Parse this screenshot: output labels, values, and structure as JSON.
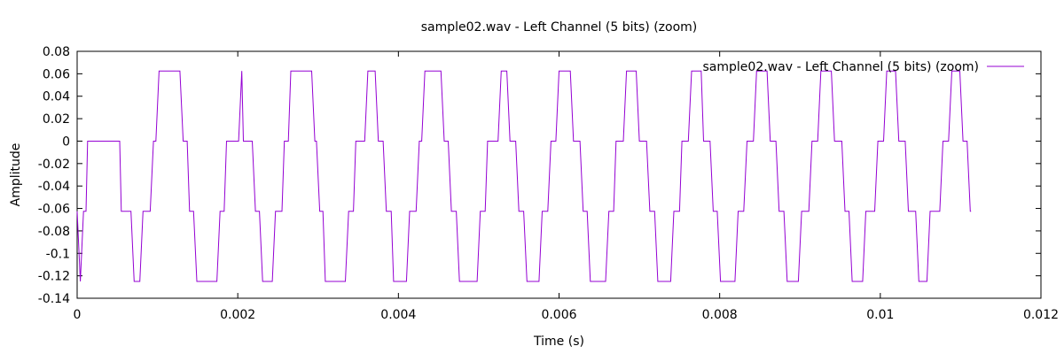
{
  "chart_data": {
    "type": "line",
    "title": "sample02.wav - Left Channel (5 bits) (zoom)",
    "xlabel": "Time (s)",
    "ylabel": "Amplitude",
    "xlim": [
      0,
      0.012
    ],
    "ylim": [
      -0.14,
      0.08
    ],
    "x_ticks": [
      {
        "value": 0,
        "label": "0"
      },
      {
        "value": 0.002,
        "label": "0.002"
      },
      {
        "value": 0.004,
        "label": "0.004"
      },
      {
        "value": 0.006,
        "label": "0.006"
      },
      {
        "value": 0.008,
        "label": "0.008"
      },
      {
        "value": 0.01,
        "label": "0.01"
      },
      {
        "value": 0.012,
        "label": "0.012"
      }
    ],
    "y_ticks": [
      {
        "value": 0.08,
        "label": "0.08"
      },
      {
        "value": 0.06,
        "label": "0.06"
      },
      {
        "value": 0.04,
        "label": "0.04"
      },
      {
        "value": 0.02,
        "label": "0.02"
      },
      {
        "value": 0,
        "label": "0"
      },
      {
        "value": -0.02,
        "label": "-0.02"
      },
      {
        "value": -0.04,
        "label": "-0.04"
      },
      {
        "value": -0.06,
        "label": "-0.06"
      },
      {
        "value": -0.08,
        "label": "-0.08"
      },
      {
        "value": -0.1,
        "label": "-0.1"
      },
      {
        "value": -0.12,
        "label": "-0.12"
      },
      {
        "value": -0.14,
        "label": "-0.14"
      }
    ],
    "grid": false,
    "legend_position": "top-right",
    "series": [
      {
        "name": "sample02.wav - Left Channel (5 bits) (zoom)",
        "color": "#9400d3",
        "points": [
          [
            0.0,
            -0.0625
          ],
          [
            4e-05,
            -0.125
          ],
          [
            8e-05,
            -0.0625
          ],
          [
            0.00011,
            -0.0625
          ],
          [
            0.00013,
            0.0
          ],
          [
            0.00053,
            0.0
          ],
          [
            0.00055,
            -0.0625
          ],
          [
            0.00067,
            -0.0625
          ],
          [
            0.00071,
            -0.125
          ],
          [
            0.00078,
            -0.125
          ],
          [
            0.00082,
            -0.0625
          ],
          [
            0.00091,
            -0.0625
          ],
          [
            0.00095,
            0.0
          ],
          [
            0.00098,
            0.0
          ],
          [
            0.00102,
            0.0625
          ],
          [
            0.00128,
            0.0625
          ],
          [
            0.00132,
            0.0
          ],
          [
            0.00137,
            0.0
          ],
          [
            0.0014,
            -0.0625
          ],
          [
            0.00145,
            -0.0625
          ],
          [
            0.00149,
            -0.125
          ],
          [
            0.00174,
            -0.125
          ],
          [
            0.00178,
            -0.0625
          ],
          [
            0.00183,
            -0.0625
          ],
          [
            0.00186,
            0.0
          ],
          [
            0.00201,
            0.0
          ],
          [
            0.00205,
            0.0625
          ],
          [
            0.00207,
            0.0
          ],
          [
            0.00218,
            0.0
          ],
          [
            0.00222,
            -0.0625
          ],
          [
            0.00227,
            -0.0625
          ],
          [
            0.00231,
            -0.125
          ],
          [
            0.00243,
            -0.125
          ],
          [
            0.00247,
            -0.0625
          ],
          [
            0.00255,
            -0.0625
          ],
          [
            0.00258,
            0.0
          ],
          [
            0.00263,
            0.0
          ],
          [
            0.00266,
            0.0625
          ],
          [
            0.00292,
            0.0625
          ],
          [
            0.00296,
            0.0
          ],
          [
            0.00298,
            0.0
          ],
          [
            0.00302,
            -0.0625
          ],
          [
            0.00306,
            -0.0625
          ],
          [
            0.00309,
            -0.125
          ],
          [
            0.00334,
            -0.125
          ],
          [
            0.00338,
            -0.0625
          ],
          [
            0.00344,
            -0.0625
          ],
          [
            0.00347,
            0.0
          ],
          [
            0.00358,
            0.0
          ],
          [
            0.00362,
            0.0625
          ],
          [
            0.00371,
            0.0625
          ],
          [
            0.00375,
            0.0
          ],
          [
            0.00381,
            0.0
          ],
          [
            0.00385,
            -0.0625
          ],
          [
            0.00391,
            -0.0625
          ],
          [
            0.00394,
            -0.125
          ],
          [
            0.0041,
            -0.125
          ],
          [
            0.00414,
            -0.0625
          ],
          [
            0.00422,
            -0.0625
          ],
          [
            0.00426,
            0.0
          ],
          [
            0.00429,
            0.0
          ],
          [
            0.00433,
            0.0625
          ],
          [
            0.00453,
            0.0625
          ],
          [
            0.00457,
            0.0
          ],
          [
            0.00462,
            0.0
          ],
          [
            0.00466,
            -0.0625
          ],
          [
            0.00472,
            -0.0625
          ],
          [
            0.00476,
            -0.125
          ],
          [
            0.00498,
            -0.125
          ],
          [
            0.00502,
            -0.0625
          ],
          [
            0.00508,
            -0.0625
          ],
          [
            0.00511,
            0.0
          ],
          [
            0.00524,
            0.0
          ],
          [
            0.00528,
            0.0625
          ],
          [
            0.00535,
            0.0625
          ],
          [
            0.00539,
            0.0
          ],
          [
            0.00546,
            0.0
          ],
          [
            0.0055,
            -0.0625
          ],
          [
            0.00556,
            -0.0625
          ],
          [
            0.0056,
            -0.125
          ],
          [
            0.00575,
            -0.125
          ],
          [
            0.00579,
            -0.0625
          ],
          [
            0.00586,
            -0.0625
          ],
          [
            0.0059,
            0.0
          ],
          [
            0.00596,
            0.0
          ],
          [
            0.006,
            0.0625
          ],
          [
            0.00614,
            0.0625
          ],
          [
            0.00618,
            0.0
          ],
          [
            0.00626,
            0.0
          ],
          [
            0.0063,
            -0.0625
          ],
          [
            0.00635,
            -0.0625
          ],
          [
            0.00639,
            -0.125
          ],
          [
            0.00658,
            -0.125
          ],
          [
            0.00662,
            -0.0625
          ],
          [
            0.00668,
            -0.0625
          ],
          [
            0.00671,
            0.0
          ],
          [
            0.0068,
            0.0
          ],
          [
            0.00684,
            0.0625
          ],
          [
            0.00696,
            0.0625
          ],
          [
            0.007,
            0.0
          ],
          [
            0.00709,
            0.0
          ],
          [
            0.00713,
            -0.0625
          ],
          [
            0.00719,
            -0.0625
          ],
          [
            0.00723,
            -0.125
          ],
          [
            0.00739,
            -0.125
          ],
          [
            0.00743,
            -0.0625
          ],
          [
            0.0075,
            -0.0625
          ],
          [
            0.00753,
            0.0
          ],
          [
            0.00761,
            0.0
          ],
          [
            0.00765,
            0.0625
          ],
          [
            0.00777,
            0.0625
          ],
          [
            0.0078,
            0.0
          ],
          [
            0.00788,
            0.0
          ],
          [
            0.00792,
            -0.0625
          ],
          [
            0.00797,
            -0.0625
          ],
          [
            0.00801,
            -0.125
          ],
          [
            0.00819,
            -0.125
          ],
          [
            0.00823,
            -0.0625
          ],
          [
            0.0083,
            -0.0625
          ],
          [
            0.00834,
            0.0
          ],
          [
            0.00842,
            0.0
          ],
          [
            0.00846,
            0.0625
          ],
          [
            0.00859,
            0.0625
          ],
          [
            0.00863,
            0.0
          ],
          [
            0.0087,
            0.0
          ],
          [
            0.00874,
            -0.0625
          ],
          [
            0.0088,
            -0.0625
          ],
          [
            0.00884,
            -0.125
          ],
          [
            0.00898,
            -0.125
          ],
          [
            0.00902,
            -0.0625
          ],
          [
            0.00911,
            -0.0625
          ],
          [
            0.00915,
            0.0
          ],
          [
            0.00922,
            0.0
          ],
          [
            0.00926,
            0.0625
          ],
          [
            0.00939,
            0.0625
          ],
          [
            0.00943,
            0.0
          ],
          [
            0.00952,
            0.0
          ],
          [
            0.00956,
            -0.0625
          ],
          [
            0.00961,
            -0.0625
          ],
          [
            0.00965,
            -0.125
          ],
          [
            0.00978,
            -0.125
          ],
          [
            0.00982,
            -0.0625
          ],
          [
            0.00993,
            -0.0625
          ],
          [
            0.00997,
            0.0
          ],
          [
            0.01004,
            0.0
          ],
          [
            0.01008,
            0.0625
          ],
          [
            0.01019,
            0.0625
          ],
          [
            0.01023,
            0.0
          ],
          [
            0.01031,
            0.0
          ],
          [
            0.01035,
            -0.0625
          ],
          [
            0.01044,
            -0.0625
          ],
          [
            0.01048,
            -0.125
          ],
          [
            0.01058,
            -0.125
          ],
          [
            0.01062,
            -0.0625
          ],
          [
            0.01074,
            -0.0625
          ],
          [
            0.01078,
            0.0
          ],
          [
            0.01085,
            0.0
          ],
          [
            0.01089,
            0.0625
          ],
          [
            0.01099,
            0.0625
          ],
          [
            0.01103,
            0.0
          ],
          [
            0.01108,
            0.0
          ],
          [
            0.01112,
            -0.0625
          ],
          [
            0.01113,
            -0.0625
          ]
        ]
      }
    ]
  }
}
